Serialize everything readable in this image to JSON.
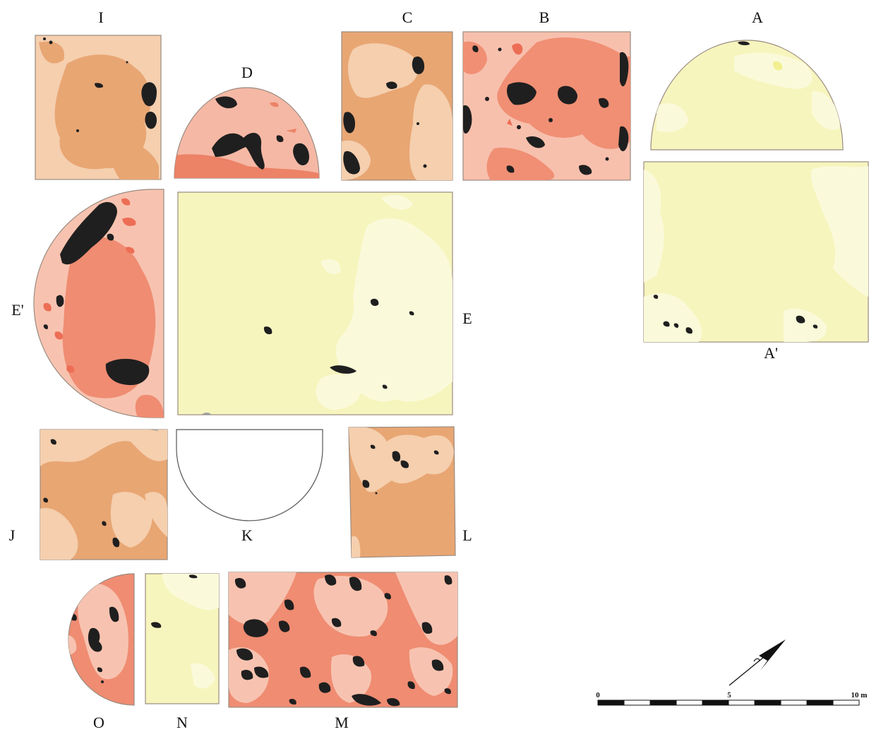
{
  "panels": [
    {
      "id": "I",
      "label": "I",
      "shape": "rect",
      "colors": {
        "base": "#e8a673",
        "light": "#f5cfae",
        "dark": "#1f1f1f"
      }
    },
    {
      "id": "D",
      "label": "D",
      "shape": "half-circle",
      "colors": {
        "base": "#f5b8a5",
        "accent": "#ec8266",
        "dark": "#1f1f1f"
      }
    },
    {
      "id": "C",
      "label": "C",
      "shape": "rect",
      "colors": {
        "base": "#e8a673",
        "light": "#f5cfae",
        "dark": "#1f1f1f"
      }
    },
    {
      "id": "B",
      "label": "B",
      "shape": "rect",
      "colors": {
        "base": "#f08f74",
        "light": "#f7c0ad",
        "dark": "#1f1f1f"
      }
    },
    {
      "id": "A",
      "label": "A",
      "shape": "half-circle",
      "colors": {
        "base": "#f7f5be",
        "light": "#fafadb",
        "dark": "#1f1f1f"
      }
    },
    {
      "id": "A_prime",
      "label": "A'",
      "shape": "rect",
      "colors": {
        "base": "#f7f5be",
        "light": "#fafadb",
        "dark": "#1f1f1f"
      }
    },
    {
      "id": "E_prime",
      "label": "E'",
      "shape": "half-circle",
      "colors": {
        "base": "#ef8c72",
        "light": "#f7c3b0",
        "dark": "#1f1f1f"
      }
    },
    {
      "id": "E",
      "label": "E",
      "shape": "rect",
      "colors": {
        "base": "#f7f5be",
        "light": "#fafadb",
        "dark": "#1f1f1f"
      }
    },
    {
      "id": "J",
      "label": "J",
      "shape": "rect",
      "colors": {
        "base": "#e8a673",
        "light": "#f5cfae",
        "dark": "#1f1f1f"
      }
    },
    {
      "id": "K",
      "label": "K",
      "shape": "half-circle",
      "colors": {
        "base": "#ffffff"
      }
    },
    {
      "id": "L",
      "label": "L",
      "shape": "rect",
      "colors": {
        "base": "#e8a673",
        "light": "#f5cfae",
        "dark": "#1f1f1f"
      }
    },
    {
      "id": "O",
      "label": "O",
      "shape": "cut-circle",
      "colors": {
        "base": "#ef8c72",
        "light": "#f7c3b0",
        "dark": "#1f1f1f"
      }
    },
    {
      "id": "N",
      "label": "N",
      "shape": "rect",
      "colors": {
        "base": "#f7f5be",
        "light": "#fafadb",
        "dark": "#1f1f1f"
      }
    },
    {
      "id": "M",
      "label": "M",
      "shape": "rect",
      "colors": {
        "base": "#ef8c72",
        "light": "#f7c3b0",
        "dark": "#1f1f1f"
      }
    }
  ],
  "scale_bar": {
    "tick_labels": [
      "0",
      "5",
      "10 m"
    ],
    "min": 0,
    "max": 10,
    "unit": "m",
    "segments": 10,
    "colors": {
      "fill": "#111111",
      "empty": "#ffffff"
    }
  },
  "north_arrow": {
    "icon": "north-arrow-icon",
    "color": "#111111"
  }
}
